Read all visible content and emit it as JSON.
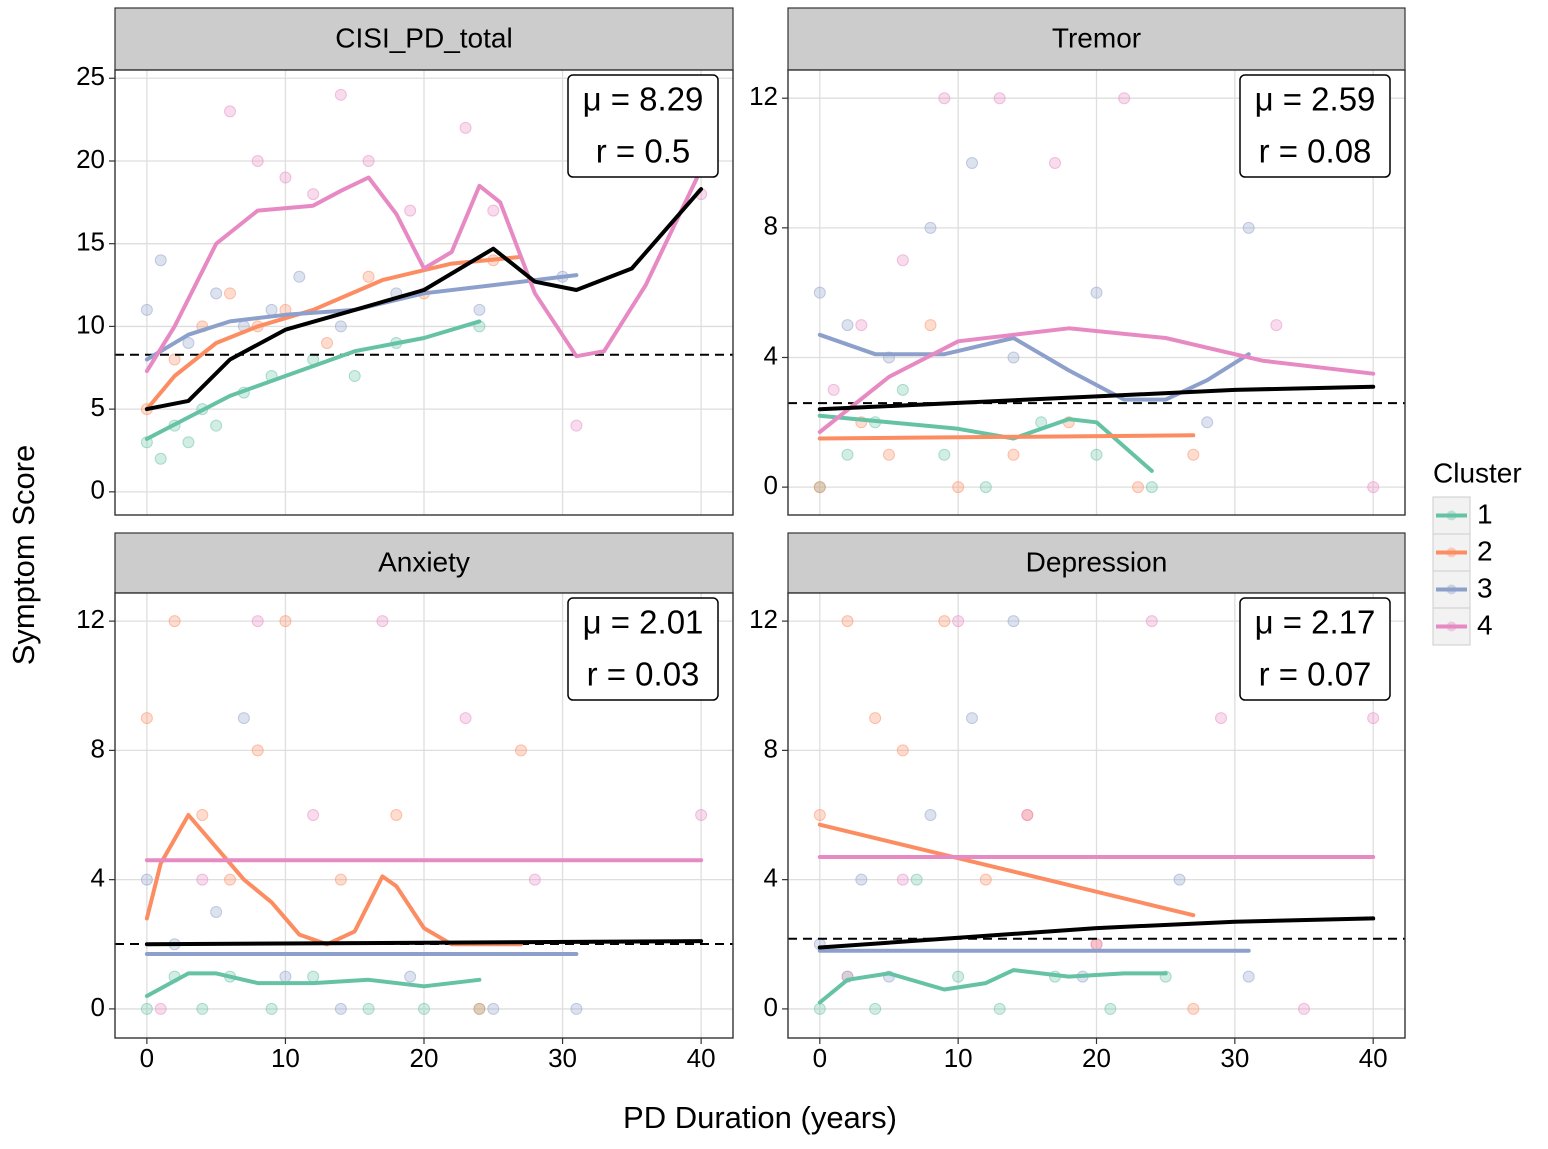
{
  "chart_data": {
    "type": "scatter",
    "xlabel": "PD Duration (years)",
    "ylabel": "Symptom Score",
    "xlim": [
      -2.3,
      42.3
    ],
    "xticks": [
      0,
      10,
      20,
      30,
      40
    ],
    "grid": true,
    "overall_color": "#000000",
    "legend": {
      "title": "Cluster",
      "position": "right",
      "series": [
        {
          "name": "1",
          "color": "#66c2a5"
        },
        {
          "name": "2",
          "color": "#fc8d62"
        },
        {
          "name": "3",
          "color": "#8da0cb"
        },
        {
          "name": "4",
          "color": "#e78ac3"
        }
      ]
    },
    "panels": [
      {
        "title": "CISI_PD_total",
        "ylim": [
          -1.4,
          25.5
        ],
        "yticks": [
          0,
          5,
          10,
          15,
          20,
          25
        ],
        "mean": 8.29,
        "annotation": [
          "μ = 8.29",
          "r = 0.5"
        ],
        "clusters": [
          {
            "x": [
              0,
              3,
              6,
              10,
              15,
              20,
              24
            ],
            "values": [
              3.2,
              4.5,
              5.8,
              7,
              8.5,
              9.3,
              10.3
            ],
            "points_x": [
              0,
              1,
              2,
              3,
              4,
              5,
              7,
              9,
              12,
              15,
              18,
              24
            ],
            "points_y": [
              3,
              2,
              4,
              3,
              5,
              4,
              6,
              7,
              8,
              7,
              9,
              10
            ]
          },
          {
            "x": [
              0,
              2,
              5,
              8,
              12,
              17,
              22,
              27
            ],
            "values": [
              5,
              7,
              9,
              10,
              11,
              12.8,
              13.8,
              14.2
            ],
            "points_x": [
              0,
              2,
              4,
              6,
              8,
              10,
              13,
              16,
              20,
              25
            ],
            "points_y": [
              5,
              8,
              10,
              12,
              10,
              11,
              9,
              13,
              12,
              14
            ]
          },
          {
            "x": [
              0,
              3,
              6,
              10,
              15,
              20,
              25,
              31
            ],
            "values": [
              8,
              9.5,
              10.3,
              10.7,
              11,
              12,
              12.5,
              13.1
            ],
            "points_x": [
              0,
              1,
              3,
              5,
              7,
              9,
              11,
              14,
              18,
              24,
              30
            ],
            "points_y": [
              11,
              14,
              9,
              12,
              10,
              11,
              13,
              10,
              12,
              11,
              13
            ]
          },
          {
            "x": [
              0,
              2,
              5,
              8,
              12,
              14,
              16,
              18,
              20,
              22,
              24,
              25.5,
              28,
              31,
              33,
              36,
              40
            ],
            "values": [
              7.3,
              10,
              15,
              17,
              17.3,
              18.2,
              19,
              16.8,
              13.5,
              14.5,
              18.5,
              17.5,
              12,
              8.2,
              8.5,
              12.5,
              19.5
            ],
            "points_x": [
              6,
              8,
              10,
              12,
              14,
              16,
              19,
              23,
              25,
              31,
              40
            ],
            "points_y": [
              23,
              20,
              19,
              18,
              24,
              20,
              17,
              22,
              17,
              4,
              18
            ]
          }
        ],
        "overall": {
          "x": [
            0,
            3,
            6,
            10,
            15,
            20,
            25,
            28,
            31,
            35,
            40
          ],
          "values": [
            5,
            5.5,
            8,
            9.8,
            11,
            12.2,
            14.7,
            12.7,
            12.2,
            13.5,
            18.3
          ]
        }
      },
      {
        "title": "Tremor",
        "ylim": [
          -0.86,
          12.87
        ],
        "yticks": [
          0,
          4,
          8,
          12
        ],
        "mean": 2.59,
        "annotation": [
          "μ = 2.59",
          "r = 0.08"
        ],
        "clusters": [
          {
            "x": [
              0,
              5,
              10,
              14,
              18,
              20,
              24
            ],
            "values": [
              2.2,
              2,
              1.8,
              1.5,
              2.1,
              2,
              0.5
            ],
            "points_x": [
              0,
              2,
              4,
              6,
              9,
              12,
              16,
              20,
              24
            ],
            "points_y": [
              0,
              1,
              2,
              3,
              1,
              0,
              2,
              1,
              0
            ]
          },
          {
            "x": [
              0,
              27
            ],
            "values": [
              1.5,
              1.6
            ],
            "points_x": [
              0,
              3,
              5,
              8,
              10,
              14,
              18,
              23,
              27
            ],
            "points_y": [
              0,
              2,
              1,
              5,
              0,
              1,
              2,
              0,
              1
            ]
          },
          {
            "x": [
              0,
              4,
              9,
              14,
              18,
              22,
              25,
              28,
              31
            ],
            "values": [
              4.7,
              4.1,
              4.1,
              4.6,
              3.6,
              2.7,
              2.7,
              3.3,
              4.1
            ],
            "points_x": [
              0,
              2,
              5,
              8,
              11,
              14,
              20,
              28,
              31
            ],
            "points_y": [
              6,
              5,
              4,
              8,
              10,
              4,
              6,
              2,
              8
            ]
          },
          {
            "x": [
              0,
              5,
              10,
              18,
              25,
              32,
              40
            ],
            "values": [
              1.7,
              3.4,
              4.5,
              4.9,
              4.6,
              3.9,
              3.5
            ],
            "points_x": [
              1,
              3,
              6,
              9,
              13,
              17,
              22,
              33,
              40
            ],
            "points_y": [
              3,
              5,
              7,
              12,
              12,
              10,
              12,
              5,
              0
            ]
          }
        ],
        "overall": {
          "x": [
            0,
            10,
            20,
            30,
            40
          ],
          "values": [
            2.4,
            2.6,
            2.8,
            3,
            3.1
          ]
        }
      },
      {
        "title": "Anxiety",
        "ylim": [
          -0.9,
          12.87
        ],
        "yticks": [
          0,
          4,
          8,
          12
        ],
        "mean": 2.01,
        "annotation": [
          "μ = 2.01",
          "r = 0.03"
        ],
        "clusters": [
          {
            "x": [
              0,
              3,
              5,
              8,
              12,
              16,
              20,
              24
            ],
            "values": [
              0.4,
              1.1,
              1.1,
              0.8,
              0.8,
              0.9,
              0.7,
              0.9
            ],
            "points_x": [
              0,
              2,
              4,
              6,
              9,
              12,
              16,
              20,
              24
            ],
            "points_y": [
              0,
              1,
              0,
              1,
              0,
              1,
              0,
              0,
              0
            ]
          },
          {
            "x": [
              0,
              1,
              3,
              5,
              7,
              9,
              11,
              13,
              15,
              17,
              18,
              20,
              22,
              27
            ],
            "values": [
              2.8,
              4.5,
              6,
              5,
              4,
              3.3,
              2.3,
              2,
              2.4,
              4.1,
              3.8,
              2.5,
              2,
              2
            ],
            "points_x": [
              0,
              2,
              4,
              6,
              8,
              10,
              14,
              18,
              24,
              27
            ],
            "points_y": [
              9,
              12,
              6,
              4,
              8,
              12,
              4,
              6,
              0,
              8
            ]
          },
          {
            "x": [
              0,
              31
            ],
            "values": [
              1.7,
              1.7
            ],
            "points_x": [
              0,
              2,
              5,
              7,
              10,
              14,
              19,
              25,
              31
            ],
            "points_y": [
              4,
              2,
              3,
              9,
              1,
              0,
              1,
              0,
              0
            ]
          },
          {
            "x": [
              0,
              40
            ],
            "values": [
              4.6,
              4.6
            ],
            "points_x": [
              1,
              4,
              8,
              12,
              17,
              23,
              28,
              40
            ],
            "points_y": [
              0,
              4,
              12,
              6,
              12,
              9,
              4,
              6
            ]
          }
        ],
        "overall": {
          "x": [
            0,
            40
          ],
          "values": [
            2,
            2.1
          ]
        }
      },
      {
        "title": "Depression",
        "ylim": [
          -0.9,
          12.87
        ],
        "yticks": [
          0,
          4,
          8,
          12
        ],
        "mean": 2.17,
        "annotation": [
          "μ = 2.17",
          "r = 0.07"
        ],
        "clusters": [
          {
            "x": [
              0,
              2,
              5,
              9,
              12,
              14,
              18,
              22,
              25
            ],
            "values": [
              0.2,
              0.9,
              1.1,
              0.6,
              0.8,
              1.2,
              1,
              1.1,
              1.1
            ],
            "points_x": [
              0,
              2,
              4,
              7,
              10,
              13,
              17,
              21,
              25
            ],
            "points_y": [
              0,
              1,
              0,
              4,
              1,
              0,
              1,
              0,
              1
            ]
          },
          {
            "x": [
              0,
              27
            ],
            "values": [
              5.7,
              2.9
            ],
            "points_x": [
              0,
              2,
              4,
              6,
              9,
              12,
              15,
              20,
              27
            ],
            "points_y": [
              6,
              12,
              9,
              8,
              12,
              4,
              6,
              2,
              0
            ]
          },
          {
            "x": [
              0,
              31
            ],
            "values": [
              1.8,
              1.8
            ],
            "points_x": [
              0,
              3,
              5,
              8,
              11,
              14,
              19,
              26,
              31
            ],
            "points_y": [
              2,
              4,
              1,
              6,
              9,
              12,
              1,
              4,
              1
            ]
          },
          {
            "x": [
              0,
              40
            ],
            "values": [
              4.7,
              4.7
            ],
            "points_x": [
              2,
              6,
              10,
              15,
              20,
              24,
              29,
              35,
              40
            ],
            "points_y": [
              1,
              4,
              12,
              6,
              2,
              12,
              9,
              0,
              9
            ]
          }
        ],
        "overall": {
          "x": [
            0,
            10,
            20,
            30,
            40
          ],
          "values": [
            1.9,
            2.2,
            2.5,
            2.7,
            2.8
          ]
        }
      }
    ]
  }
}
